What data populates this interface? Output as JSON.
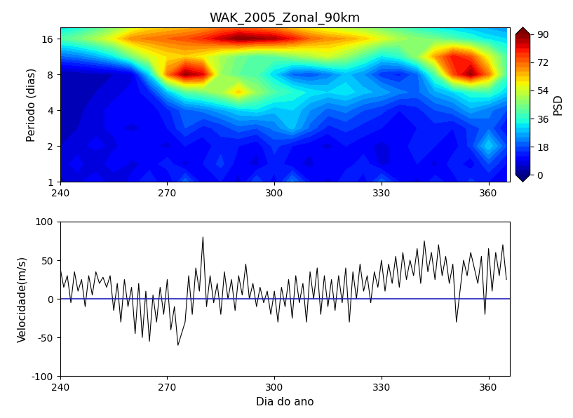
{
  "chart_data": [
    {
      "type": "heatmap",
      "title": "WAK_2005_Zonal_90km",
      "ylabel": "Periodo (dias)",
      "log": "y",
      "x": [
        240,
        245,
        250,
        255,
        260,
        265,
        270,
        275,
        280,
        285,
        290,
        295,
        300,
        305,
        310,
        315,
        320,
        325,
        330,
        335,
        340,
        345,
        350,
        355,
        360,
        365
      ],
      "y": [
        1,
        1.41,
        2,
        2.83,
        4,
        5.66,
        8,
        11.3,
        16,
        20
      ],
      "cells": [
        [
          5,
          8,
          12,
          6,
          10,
          15,
          8,
          20,
          10,
          12,
          8,
          18,
          10,
          22,
          12,
          8,
          15,
          10,
          20,
          12,
          8,
          14,
          10,
          16,
          12,
          10
        ],
        [
          8,
          10,
          6,
          12,
          8,
          10,
          14,
          8,
          12,
          16,
          10,
          8,
          14,
          10,
          8,
          12,
          10,
          14,
          8,
          10,
          12,
          8,
          14,
          10,
          18,
          12
        ],
        [
          6,
          8,
          10,
          8,
          12,
          10,
          8,
          12,
          10,
          14,
          12,
          10,
          16,
          12,
          10,
          8,
          12,
          10,
          8,
          10,
          14,
          12,
          10,
          16,
          30,
          18
        ],
        [
          5,
          6,
          8,
          10,
          8,
          10,
          12,
          18,
          14,
          16,
          20,
          18,
          22,
          28,
          20,
          14,
          16,
          14,
          12,
          10,
          12,
          14,
          12,
          16,
          20,
          12
        ],
        [
          6,
          5,
          8,
          10,
          12,
          10,
          14,
          20,
          22,
          26,
          30,
          32,
          28,
          30,
          24,
          20,
          22,
          18,
          16,
          12,
          14,
          18,
          20,
          26,
          22,
          18
        ],
        [
          4,
          5,
          6,
          8,
          10,
          14,
          28,
          40,
          44,
          50,
          62,
          48,
          40,
          36,
          32,
          30,
          32,
          28,
          26,
          22,
          20,
          26,
          30,
          36,
          38,
          30
        ],
        [
          3,
          4,
          5,
          6,
          8,
          30,
          70,
          88,
          82,
          48,
          42,
          40,
          30,
          20,
          18,
          22,
          28,
          24,
          16,
          14,
          20,
          40,
          74,
          88,
          70,
          40
        ],
        [
          20,
          22,
          26,
          32,
          44,
          55,
          60,
          62,
          58,
          50,
          44,
          40,
          42,
          46,
          50,
          54,
          48,
          40,
          32,
          36,
          48,
          66,
          80,
          74,
          56,
          40
        ],
        [
          40,
          44,
          50,
          58,
          68,
          70,
          72,
          74,
          78,
          84,
          90,
          88,
          86,
          80,
          72,
          68,
          66,
          62,
          56,
          50,
          46,
          44,
          40,
          36,
          32,
          30
        ],
        [
          30,
          34,
          40,
          46,
          54,
          60,
          62,
          64,
          66,
          70,
          72,
          70,
          68,
          62,
          58,
          54,
          50,
          48,
          44,
          40,
          36,
          32,
          30,
          28,
          26,
          24
        ]
      ],
      "xlim": [
        240,
        366
      ],
      "xticks": [
        240,
        270,
        300,
        330,
        360
      ],
      "ylim": [
        1,
        20
      ],
      "yticks": [
        1,
        2,
        4,
        8,
        16
      ],
      "colorbar": {
        "label": "PSD",
        "range": [
          0,
          90
        ],
        "ticks": [
          0,
          18,
          36,
          54,
          72,
          90
        ]
      }
    },
    {
      "type": "line",
      "xlabel": "Dia do ano",
      "ylabel": "Velocidade(m/s)",
      "color": "#000000",
      "hline": 0,
      "x": [
        240,
        241,
        242,
        243,
        244,
        245,
        246,
        247,
        248,
        249,
        250,
        251,
        252,
        253,
        254,
        255,
        256,
        257,
        258,
        259,
        260,
        261,
        262,
        263,
        264,
        265,
        266,
        267,
        268,
        269,
        270,
        271,
        272,
        273,
        274,
        275,
        276,
        277,
        278,
        279,
        280,
        281,
        282,
        283,
        284,
        285,
        286,
        287,
        288,
        289,
        290,
        291,
        292,
        293,
        294,
        295,
        296,
        297,
        298,
        299,
        300,
        301,
        302,
        303,
        304,
        305,
        306,
        307,
        308,
        309,
        310,
        311,
        312,
        313,
        314,
        315,
        316,
        317,
        318,
        319,
        320,
        321,
        322,
        323,
        324,
        325,
        326,
        327,
        328,
        329,
        330,
        331,
        332,
        333,
        334,
        335,
        336,
        337,
        338,
        339,
        340,
        341,
        342,
        343,
        344,
        345,
        346,
        347,
        348,
        349,
        350,
        351,
        352,
        353,
        354,
        355,
        356,
        357,
        358,
        359,
        360,
        361,
        362,
        363,
        364,
        365
      ],
      "values": [
        40,
        15,
        30,
        -5,
        35,
        10,
        25,
        -10,
        30,
        5,
        35,
        20,
        28,
        15,
        30,
        -15,
        20,
        -30,
        25,
        -10,
        15,
        -45,
        20,
        -50,
        10,
        -55,
        5,
        -30,
        15,
        -20,
        25,
        -40,
        -10,
        -60,
        -45,
        -30,
        30,
        -20,
        40,
        10,
        80,
        -10,
        30,
        -5,
        20,
        -20,
        35,
        0,
        25,
        -15,
        30,
        5,
        45,
        0,
        20,
        -10,
        15,
        -5,
        10,
        -20,
        10,
        -30,
        15,
        -10,
        25,
        -25,
        30,
        -5,
        20,
        -30,
        35,
        0,
        40,
        -20,
        30,
        -10,
        25,
        -15,
        30,
        -5,
        40,
        -30,
        35,
        0,
        45,
        10,
        30,
        -5,
        35,
        15,
        50,
        10,
        45,
        20,
        55,
        15,
        60,
        25,
        50,
        30,
        65,
        20,
        75,
        35,
        60,
        25,
        70,
        30,
        55,
        20,
        45,
        -30,
        10,
        50,
        30,
        60,
        40,
        20,
        55,
        -20,
        65,
        10,
        60,
        30,
        70,
        25
      ],
      "xlim": [
        240,
        366
      ],
      "xticks": [
        240,
        270,
        300,
        330,
        360
      ],
      "ylim": [
        -100,
        100
      ],
      "yticks": [
        -100,
        -50,
        0,
        50,
        100
      ]
    }
  ]
}
